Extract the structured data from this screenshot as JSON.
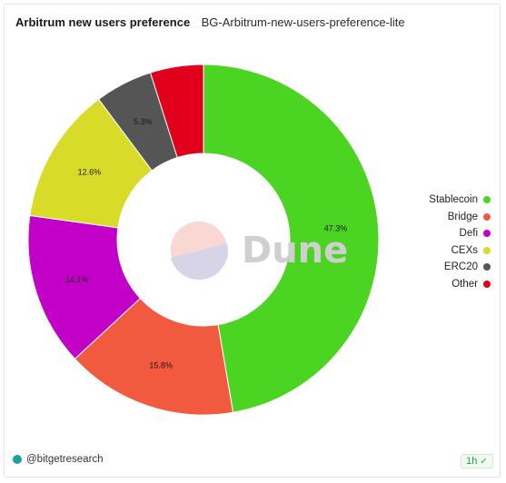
{
  "header": {
    "title": "Arbitrum new users preference",
    "subtitle": "BG-Arbitrum-new-users-preference-lite"
  },
  "chart_data": {
    "type": "pie",
    "donut": true,
    "categories": [
      "Stablecoin",
      "Bridge",
      "Defi",
      "CEXs",
      "ERC20",
      "Other"
    ],
    "values": [
      47.3,
      15.8,
      14.1,
      12.6,
      5.3,
      4.9
    ],
    "labels": [
      "47.3%",
      "15.8%",
      "14.1%",
      "12.6%",
      "5.3%",
      ""
    ],
    "colors": [
      "#4cd423",
      "#f15a3e",
      "#c300c8",
      "#d8dc28",
      "#555555",
      "#e0001c"
    ],
    "legend_position": "right"
  },
  "watermark": {
    "text": "Dune"
  },
  "footer": {
    "author": "@bitgetresearch",
    "refresh": "1h",
    "author_icon": "avatar-icon",
    "refresh_icon": "check-circle-icon"
  }
}
